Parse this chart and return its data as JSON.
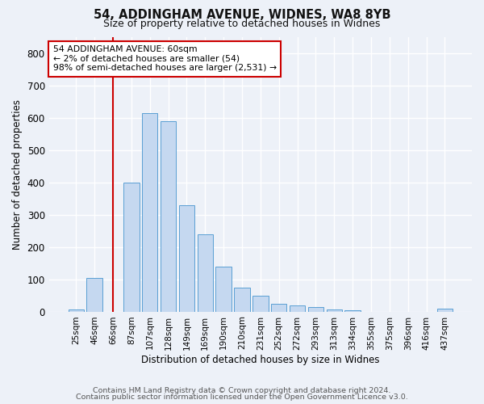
{
  "title1": "54, ADDINGHAM AVENUE, WIDNES, WA8 8YB",
  "title2": "Size of property relative to detached houses in Widnes",
  "xlabel": "Distribution of detached houses by size in Widnes",
  "ylabel": "Number of detached properties",
  "categories": [
    "25sqm",
    "46sqm",
    "66sqm",
    "87sqm",
    "107sqm",
    "128sqm",
    "149sqm",
    "169sqm",
    "190sqm",
    "210sqm",
    "231sqm",
    "252sqm",
    "272sqm",
    "293sqm",
    "313sqm",
    "334sqm",
    "355sqm",
    "375sqm",
    "396sqm",
    "416sqm",
    "437sqm"
  ],
  "values": [
    7,
    105,
    0,
    400,
    615,
    590,
    330,
    238,
    138,
    75,
    50,
    23,
    18,
    15,
    6,
    5,
    0,
    0,
    0,
    0,
    8
  ],
  "bar_color": "#c5d8f0",
  "bar_edge_color": "#5a9fd4",
  "vline_x": 2,
  "vline_color": "#cc0000",
  "annotation_text": "54 ADDINGHAM AVENUE: 60sqm\n← 2% of detached houses are smaller (54)\n98% of semi-detached houses are larger (2,531) →",
  "annotation_box_facecolor": "#ffffff",
  "annotation_box_edgecolor": "#cc0000",
  "footer1": "Contains HM Land Registry data © Crown copyright and database right 2024.",
  "footer2": "Contains public sector information licensed under the Open Government Licence v3.0.",
  "bg_color": "#edf1f8",
  "plot_bg_color": "#edf1f8",
  "ylim": [
    0,
    850
  ],
  "yticks": [
    0,
    100,
    200,
    300,
    400,
    500,
    600,
    700,
    800
  ],
  "grid_color": "#ffffff",
  "title1_fontsize": 10.5,
  "title2_fontsize": 9
}
